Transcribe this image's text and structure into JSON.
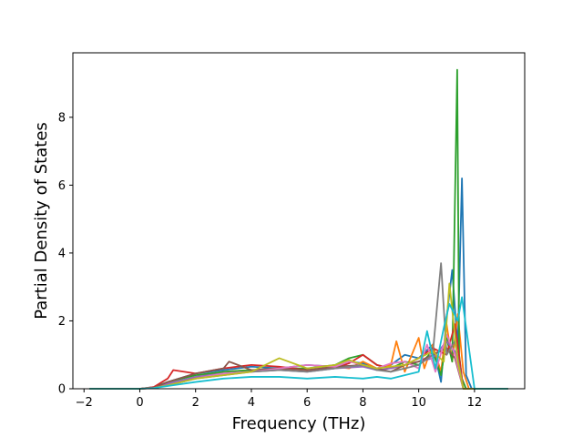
{
  "chart_data": {
    "type": "line",
    "title": "",
    "xlabel": "Frequency (THz)",
    "ylabel": "Partial Density of States",
    "xlim": [
      -2.4,
      13.8
    ],
    "ylim": [
      0,
      9.9
    ],
    "xticks": [
      -2,
      0,
      2,
      4,
      6,
      8,
      10,
      12
    ],
    "yticks": [
      0,
      2,
      4,
      6,
      8
    ],
    "grid": false,
    "legend": "none",
    "x_range_of_data": [
      -1.8,
      13.2
    ],
    "series": [
      {
        "color": "#1f77b4",
        "x": [
          -1.8,
          0,
          0.5,
          1,
          2,
          3,
          4,
          5,
          6,
          7,
          7.5,
          8,
          8.5,
          9,
          9.5,
          10,
          10.5,
          10.8,
          11,
          11.2,
          11.4,
          11.55,
          11.7,
          11.9,
          12.2,
          13.2
        ],
        "y": [
          0,
          0,
          0.05,
          0.2,
          0.45,
          0.55,
          0.65,
          0.6,
          0.7,
          0.65,
          0.8,
          0.75,
          0.6,
          0.7,
          1.0,
          0.9,
          1.3,
          0.2,
          2.1,
          3.5,
          1.2,
          6.2,
          0.4,
          0,
          0,
          0
        ]
      },
      {
        "color": "#ff7f0e",
        "x": [
          -1.8,
          0,
          0.5,
          1,
          2,
          3,
          4,
          5,
          6,
          7,
          7.5,
          8,
          8.5,
          9,
          9.2,
          9.5,
          10,
          10.2,
          10.5,
          10.8,
          11,
          11.2,
          11.4,
          11.6,
          11.8,
          13.2
        ],
        "y": [
          0,
          0,
          0.03,
          0.15,
          0.35,
          0.5,
          0.55,
          0.6,
          0.55,
          0.65,
          0.6,
          0.8,
          0.6,
          0.7,
          1.4,
          0.5,
          1.5,
          0.6,
          1.3,
          0.5,
          1.9,
          0.8,
          2.2,
          0.5,
          0,
          0
        ]
      },
      {
        "color": "#2ca02c",
        "x": [
          -1.8,
          0,
          0.5,
          1,
          2,
          3,
          4,
          5,
          6,
          7,
          7.5,
          8,
          8.5,
          9,
          9.5,
          10,
          10.5,
          10.8,
          11,
          11.2,
          11.38,
          11.45,
          11.55,
          11.7,
          13.2
        ],
        "y": [
          0,
          0,
          0.04,
          0.2,
          0.4,
          0.5,
          0.55,
          0.6,
          0.6,
          0.7,
          0.9,
          1.0,
          0.7,
          0.6,
          0.8,
          0.7,
          1.1,
          0.4,
          1.5,
          0.8,
          9.4,
          1.0,
          0.3,
          0,
          0
        ]
      },
      {
        "color": "#d62728",
        "x": [
          -1.8,
          0,
          0.5,
          1,
          1.2,
          2,
          3,
          4,
          5,
          6,
          7,
          7.5,
          8,
          8.5,
          9,
          9.5,
          10,
          10.5,
          11,
          11.3,
          11.6,
          13.2
        ],
        "y": [
          0,
          0,
          0.05,
          0.3,
          0.55,
          0.45,
          0.6,
          0.7,
          0.65,
          0.55,
          0.6,
          0.75,
          1.0,
          0.7,
          0.6,
          0.7,
          0.9,
          1.2,
          1.0,
          1.9,
          0,
          0
        ]
      },
      {
        "color": "#9467bd",
        "x": [
          -1.8,
          0,
          0.5,
          1,
          2,
          3,
          4,
          5,
          6,
          7,
          8,
          8.5,
          9,
          9.5,
          10,
          10.5,
          11,
          11.3,
          11.6,
          13.2
        ],
        "y": [
          0,
          0,
          0.02,
          0.15,
          0.35,
          0.45,
          0.5,
          0.55,
          0.5,
          0.6,
          0.65,
          0.55,
          0.6,
          0.7,
          0.8,
          0.9,
          1.4,
          1.1,
          0,
          0
        ]
      },
      {
        "color": "#8c564b",
        "x": [
          -1.8,
          0,
          0.5,
          1,
          2,
          3,
          3.2,
          4,
          5,
          6,
          7,
          8,
          8.5,
          9,
          9.5,
          10,
          10.5,
          11,
          11.3,
          11.6,
          13.2
        ],
        "y": [
          0,
          0,
          0.03,
          0.2,
          0.45,
          0.6,
          0.8,
          0.55,
          0.6,
          0.55,
          0.65,
          0.7,
          0.6,
          0.5,
          0.7,
          0.8,
          1.0,
          1.2,
          0.9,
          0,
          0
        ]
      },
      {
        "color": "#e377c2",
        "x": [
          -1.8,
          0,
          0.5,
          1,
          2,
          3,
          4,
          5,
          6,
          7,
          7.5,
          8,
          8.5,
          9,
          9.5,
          10,
          10.3,
          10.6,
          11,
          11.3,
          11.6,
          13.2
        ],
        "y": [
          0,
          0,
          0.02,
          0.1,
          0.3,
          0.45,
          0.5,
          0.6,
          0.7,
          0.65,
          0.8,
          0.7,
          0.6,
          0.75,
          0.8,
          0.6,
          1.3,
          0.5,
          1.6,
          1.0,
          0,
          0
        ]
      },
      {
        "color": "#7f7f7f",
        "x": [
          -1.8,
          0,
          0.5,
          1,
          2,
          3,
          4,
          5,
          6,
          7,
          8,
          8.5,
          9,
          9.5,
          10,
          10.5,
          10.8,
          11,
          11.3,
          11.6,
          13.2
        ],
        "y": [
          0,
          0,
          0.02,
          0.1,
          0.3,
          0.4,
          0.5,
          0.55,
          0.5,
          0.6,
          0.7,
          0.55,
          0.5,
          0.6,
          0.7,
          1.0,
          3.7,
          1.0,
          1.4,
          0,
          0
        ]
      },
      {
        "color": "#bcbd22",
        "x": [
          -1.8,
          0,
          0.5,
          1,
          2,
          3,
          4,
          5,
          6,
          7,
          7.5,
          8,
          8.5,
          9,
          9.5,
          10,
          10.5,
          10.9,
          11.1,
          11.4,
          11.6,
          13.2
        ],
        "y": [
          0,
          0,
          0.02,
          0.1,
          0.3,
          0.4,
          0.5,
          0.9,
          0.6,
          0.7,
          0.85,
          0.7,
          0.6,
          0.65,
          0.7,
          0.9,
          1.1,
          0.8,
          3.1,
          0.8,
          0,
          0
        ]
      },
      {
        "color": "#17becf",
        "x": [
          -1.8,
          0,
          0.5,
          1,
          2,
          3,
          4,
          5,
          6,
          7,
          8,
          8.5,
          9,
          9.5,
          10,
          10.3,
          10.6,
          10.9,
          11.1,
          11.4,
          11.55,
          11.75,
          12,
          13.2
        ],
        "y": [
          0,
          0,
          0.02,
          0.08,
          0.2,
          0.3,
          0.35,
          0.35,
          0.3,
          0.35,
          0.3,
          0.35,
          0.3,
          0.4,
          0.5,
          1.7,
          0.6,
          1.8,
          2.5,
          2.0,
          2.7,
          1.5,
          0,
          0
        ]
      }
    ]
  }
}
